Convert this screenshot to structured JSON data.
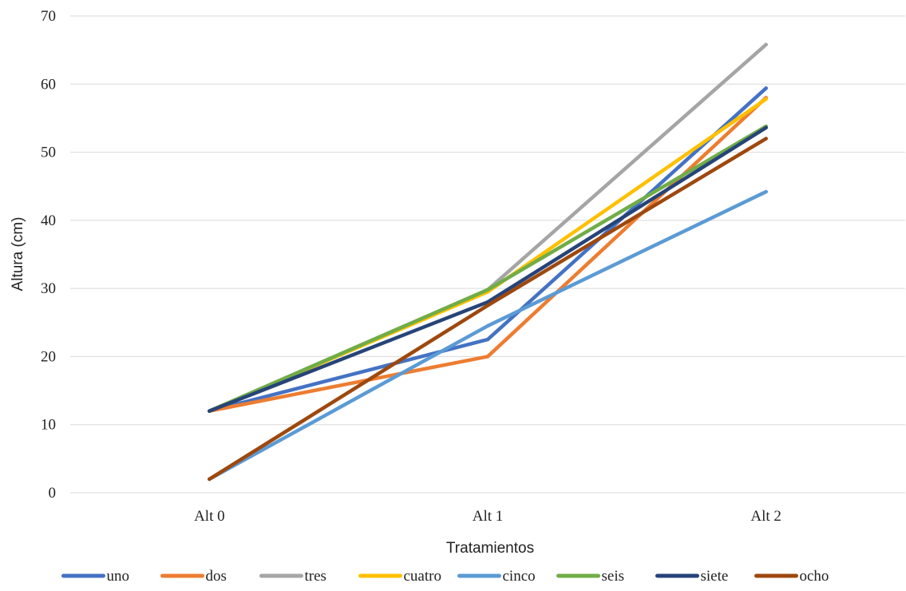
{
  "chart_data": {
    "type": "line",
    "title": "",
    "xlabel": "Tratamientos",
    "ylabel": "Altura (cm)",
    "categories": [
      "Alt 0",
      "Alt 1",
      "Alt 2"
    ],
    "ylim": [
      0,
      70
    ],
    "yticks": [
      0,
      10,
      20,
      30,
      40,
      50,
      60,
      70
    ],
    "grid": true,
    "legend_position": "bottom",
    "series": [
      {
        "name": "uno",
        "color": "#4472C4",
        "values": [
          12,
          22.5,
          59.4
        ]
      },
      {
        "name": "dos",
        "color": "#ED7D31",
        "values": [
          12,
          20,
          58.0
        ]
      },
      {
        "name": "tres",
        "color": "#A5A5A5",
        "values": [
          12,
          29.8,
          65.8
        ]
      },
      {
        "name": "cuatro",
        "color": "#FFC000",
        "values": [
          12,
          29.5,
          57.8
        ]
      },
      {
        "name": "cinco",
        "color": "#5B9BD5",
        "values": [
          2,
          24.5,
          44.2
        ]
      },
      {
        "name": "seis",
        "color": "#70AD47",
        "values": [
          12,
          29.8,
          53.8
        ]
      },
      {
        "name": "siete",
        "color": "#264478",
        "values": [
          12,
          28.0,
          53.6
        ]
      },
      {
        "name": "ocho",
        "color": "#9E480E",
        "values": [
          2,
          27.5,
          52.0
        ]
      }
    ]
  }
}
